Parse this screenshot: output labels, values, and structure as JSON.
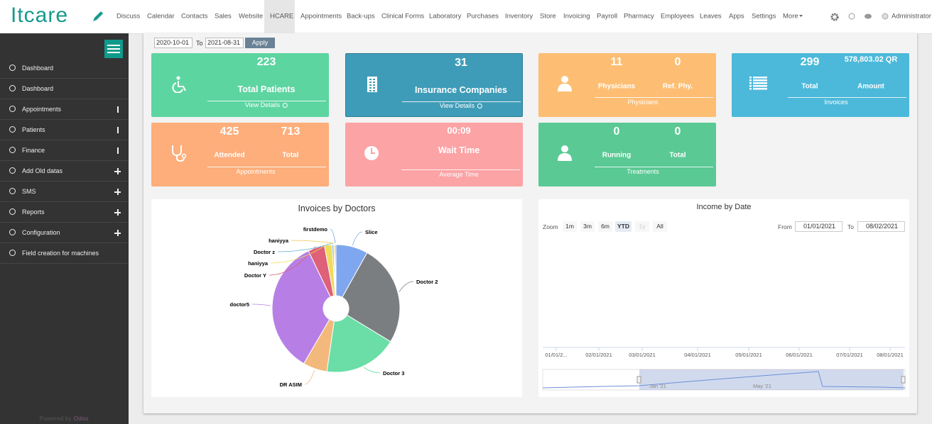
{
  "navbar": {
    "logo": "Itcare",
    "menu": [
      "Discuss",
      "Calendar",
      "Contacts",
      "Sales",
      "Website",
      "HCARE",
      "Appointments",
      "Back-ups",
      "Clinical Forms",
      "Laboratory",
      "Purchases",
      "Inventory",
      "Store",
      "Invoicing",
      "Payroll",
      "Pharmacy",
      "Employees",
      "Leaves",
      "Apps",
      "Settings",
      "More"
    ],
    "active": "HCARE",
    "user": "Administrator"
  },
  "sidebar": {
    "items": [
      "Dashboard",
      "Dashboard",
      "Appointments",
      "Patients",
      "Finance",
      "Add Old datas",
      "SMS",
      "Reports",
      "Configuration",
      "Field creation for machines"
    ],
    "footer": {
      "prefix": "Powered by",
      "brand": "Odoo"
    }
  },
  "filter": {
    "from": "2020-10-01",
    "to_label": "To",
    "to": "2021-08-31",
    "button": "Apply"
  },
  "cards": [
    {
      "color": "#5dd5a1",
      "values": [
        223
      ],
      "labels": [
        "Total Patients"
      ],
      "footer": "View Details"
    },
    {
      "color": "#3f9cb8",
      "values": [
        31
      ],
      "labels": [
        "Insurance Companies"
      ],
      "footer": "View Details"
    },
    {
      "color": "#fdbe73",
      "values": [
        11,
        0
      ],
      "labels": [
        "Physicians",
        "Ref. Phy."
      ],
      "footer": "Physicians"
    },
    {
      "color": "#4cb9da",
      "values": [
        299,
        "578,803.02 QR"
      ],
      "labels": [
        "Total",
        "Amount"
      ],
      "footer": "Invoices"
    },
    {
      "color": "#fdae7b",
      "values": [
        425,
        713
      ],
      "labels": [
        "Attended",
        "Total"
      ],
      "footer": "Appointments"
    },
    {
      "color": "#fca3a5",
      "values": [
        "00:09"
      ],
      "labels": [
        "Wait Time"
      ],
      "footer": "Average Time"
    },
    {
      "color": "#5ac994",
      "values": [
        0,
        0
      ],
      "labels": [
        "Running",
        "Total"
      ],
      "footer": "Treatments"
    }
  ],
  "invoices_by_doctors": {
    "type": "pie",
    "title": "Invoices by Doctors",
    "categories": [
      "Slice",
      "Doctor 2",
      "Doctor 3",
      "DR ASIM",
      "doctor5",
      "Doctor Y",
      "haniyya",
      "Doctor z",
      "haniyya",
      "firstdemo"
    ],
    "values": [
      8.1,
      25.6,
      18.6,
      6.1,
      34.5,
      4.2,
      1.9,
      0.4,
      0.3,
      0.3
    ],
    "colors": [
      "#7fa7ef",
      "#7b7e81",
      "#6adea6",
      "#f3b87b",
      "#b77fe6",
      "#de6079",
      "#efdc5b",
      "#5fb4d5",
      "#f2c44d",
      "#6f9fd8"
    ]
  },
  "income_by_date": {
    "title": "Income by Date",
    "zoom_label": "Zoom",
    "zoom_buttons": [
      "1m",
      "3m",
      "6m",
      "YTD",
      "1y",
      "All"
    ],
    "zoom_active": "YTD",
    "from_label": "From",
    "from": "01/01/2021",
    "to_label": "To",
    "to": "08/02/2021",
    "x_labels": [
      "01/01/2...",
      "02/01/2021",
      "03/01/2021",
      "04/01/2021",
      "05/01/2021",
      "06/01/2021",
      "07/01/2021",
      "08/01/2021"
    ],
    "navigator_labels": [
      "Jan '21",
      "May '21"
    ]
  }
}
